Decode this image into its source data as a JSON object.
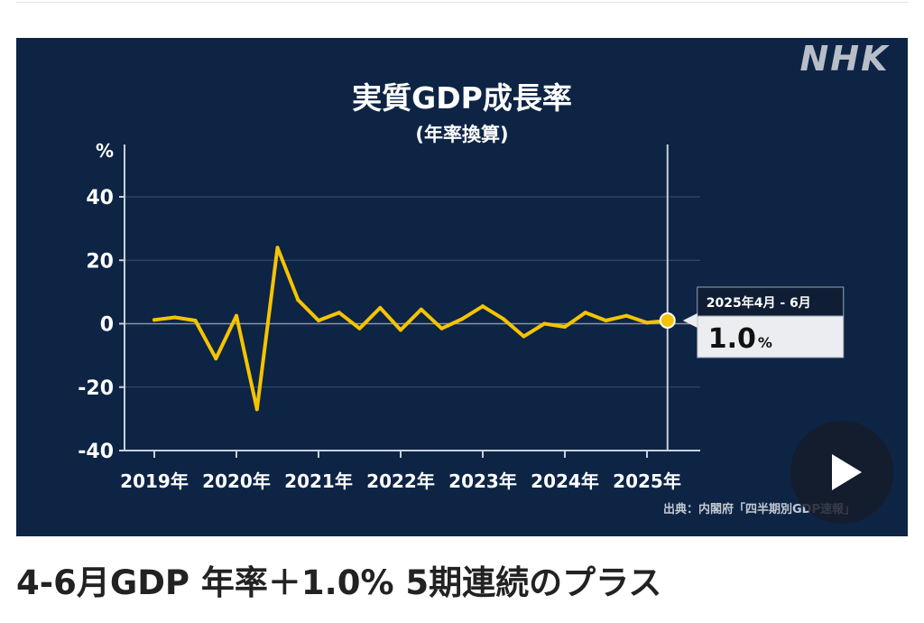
{
  "brand": {
    "logo_text": "NHK"
  },
  "chart": {
    "title": "実質GDP成長率",
    "subtitle": "(年率換算)",
    "unit_label": "%",
    "source": "出典：内閣府「四半期別GDP速報」",
    "callout": {
      "period": "2025年4月 - 6月",
      "value": "1.0",
      "unit": "%"
    }
  },
  "chart_data": {
    "type": "line",
    "title": "実質GDP成長率",
    "subtitle": "(年率換算)",
    "ylabel": "%",
    "ylim": [
      -40,
      50
    ],
    "yticks": [
      40,
      20,
      0,
      -20,
      -40
    ],
    "ytick_labels": [
      "40",
      "20",
      "0",
      "-20",
      "-40"
    ],
    "x_categories": [
      "2019年",
      "2020年",
      "2021年",
      "2022年",
      "2023年",
      "2024年",
      "2025年"
    ],
    "grid": true,
    "colors": {
      "background": "#0d2445",
      "line": "#f5c400",
      "grid": "#3a4f70",
      "axis": "#c9d0dc",
      "text": "#ffffff"
    },
    "series": [
      {
        "x": [
          "2019年1-3月",
          "2019年4-6月",
          "2019年7-9月",
          "2019年10-12月",
          "2020年1-3月",
          "2020年4-6月",
          "2020年7-9月",
          "2020年10-12月",
          "2021年1-3月",
          "2021年4-6月",
          "2021年7-9月",
          "2021年10-12月",
          "2022年1-3月",
          "2022年4-6月",
          "2022年7-9月",
          "2022年10-12月",
          "2023年1-3月",
          "2023年4-6月",
          "2023年7-9月",
          "2023年10-12月",
          "2024年1-3月",
          "2024年4-6月",
          "2024年7-9月",
          "2024年10-12月",
          "2025年1-3月",
          "2025年4-6月"
        ],
        "values": [
          1.2,
          2.0,
          1.0,
          -11.0,
          2.5,
          -27.0,
          24.0,
          7.5,
          1.0,
          3.5,
          -1.5,
          5.0,
          -2.0,
          4.5,
          -1.5,
          1.5,
          5.5,
          1.5,
          -4.0,
          0.0,
          -1.0,
          3.5,
          1.0,
          2.5,
          0.3,
          1.0
        ]
      }
    ]
  },
  "headline": {
    "text": "4-6月GDP 年率＋1.0% 5期連続のプラス"
  },
  "player": {
    "play_icon": "play-icon"
  }
}
